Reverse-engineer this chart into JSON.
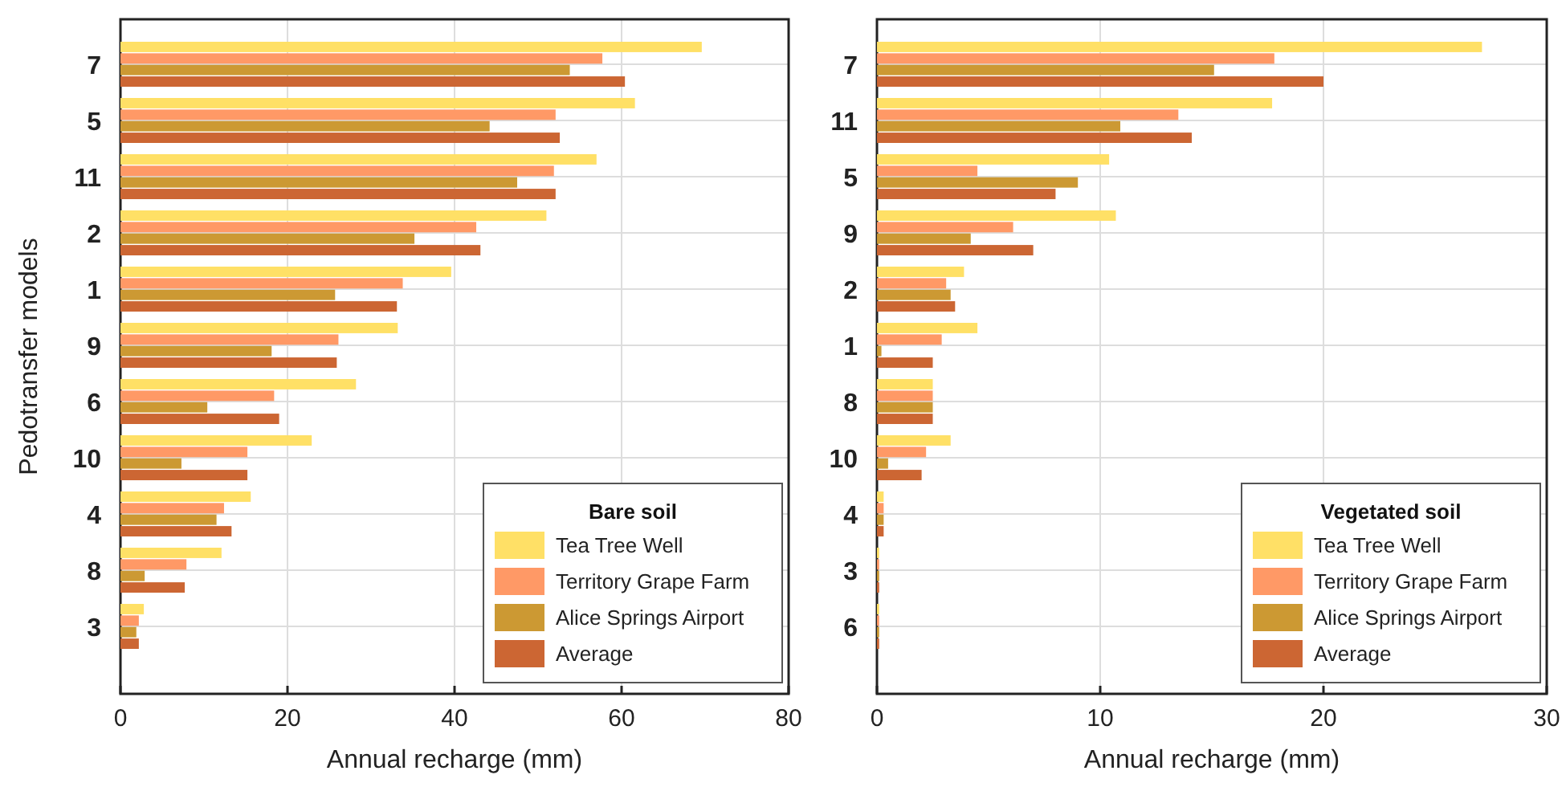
{
  "chart_data": [
    {
      "type": "bar",
      "orientation": "horizontal",
      "ylabel": "Pedotransfer models",
      "xlabel": "Annual recharge (mm)",
      "legend_title": "Bare soil",
      "legend": "bottom right",
      "grid": true,
      "categories": [
        "7",
        "5",
        "11",
        "2",
        "1",
        "9",
        "6",
        "10",
        "4",
        "8",
        "3"
      ],
      "xlim": [
        0,
        80
      ],
      "xticks": [
        0,
        20,
        40,
        60,
        80
      ],
      "series": [
        {
          "name": "Tea Tree Well",
          "color": "#ffe066",
          "values": [
            69.6,
            61.6,
            57.0,
            51.0,
            39.6,
            33.2,
            28.2,
            22.9,
            15.6,
            12.1,
            2.8
          ]
        },
        {
          "name": "Territory Grape Farm",
          "color": "#ff9966",
          "values": [
            57.7,
            52.1,
            51.9,
            42.6,
            33.8,
            26.1,
            18.4,
            15.2,
            12.4,
            7.9,
            2.2
          ]
        },
        {
          "name": "Alice Springs Airport",
          "color": "#cc9933",
          "values": [
            53.8,
            44.2,
            47.5,
            35.2,
            25.7,
            18.1,
            10.4,
            7.3,
            11.5,
            2.9,
            1.9
          ]
        },
        {
          "name": "Average",
          "color": "#cc6633",
          "values": [
            60.4,
            52.6,
            52.1,
            43.1,
            33.1,
            25.9,
            19.0,
            15.2,
            13.3,
            7.7,
            2.2
          ]
        }
      ]
    },
    {
      "type": "bar",
      "orientation": "horizontal",
      "xlabel": "Annual recharge (mm)",
      "legend_title": "Vegetated soil",
      "legend": "bottom right",
      "grid": true,
      "categories": [
        "7",
        "11",
        "5",
        "9",
        "2",
        "1",
        "8",
        "10",
        "4",
        "3",
        "6"
      ],
      "xlim": [
        0,
        30
      ],
      "xticks": [
        0,
        10,
        20,
        30
      ],
      "series": [
        {
          "name": "Tea Tree Well",
          "color": "#ffe066",
          "values": [
            27.1,
            17.7,
            10.4,
            10.7,
            3.9,
            4.5,
            2.5,
            3.3,
            0.3,
            0.1,
            0.1
          ]
        },
        {
          "name": "Territory Grape Farm",
          "color": "#ff9966",
          "values": [
            17.8,
            13.5,
            4.5,
            6.1,
            3.1,
            2.9,
            2.5,
            2.2,
            0.3,
            0.1,
            0.1
          ]
        },
        {
          "name": "Alice Springs Airport",
          "color": "#cc9933",
          "values": [
            15.1,
            10.9,
            9.0,
            4.2,
            3.3,
            0.2,
            2.5,
            0.5,
            0.3,
            0.1,
            0.1
          ]
        },
        {
          "name": "Average",
          "color": "#cc6633",
          "values": [
            20.0,
            14.1,
            8.0,
            7.0,
            3.5,
            2.5,
            2.5,
            2.0,
            0.3,
            0.1,
            0.1
          ]
        }
      ]
    }
  ]
}
